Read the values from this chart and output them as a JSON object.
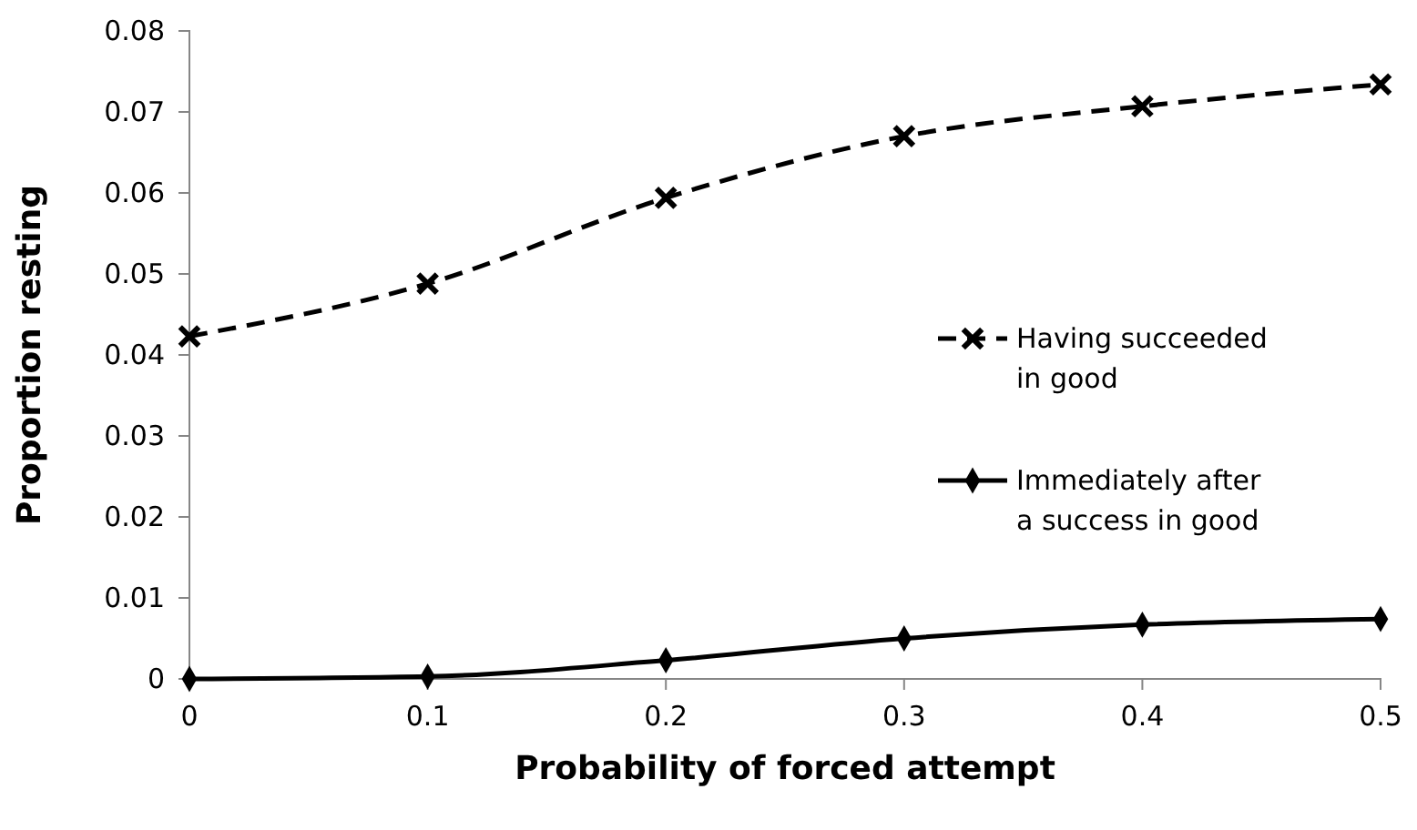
{
  "chart_data": {
    "type": "line",
    "xlabel": "Probability of forced attempt",
    "ylabel": "Proportion resting",
    "x": [
      0,
      0.1,
      0.2,
      0.3,
      0.4,
      0.5
    ],
    "series": [
      {
        "name": "Having succeeded in good",
        "color": "#000000",
        "values": [
          0.0423,
          0.0488,
          0.0594,
          0.067,
          0.0707,
          0.0734
        ],
        "marker": "cross",
        "line_style": "dashed"
      },
      {
        "name": "Immediately after a success in good",
        "color": "#000000",
        "values": [
          0,
          0.0003,
          0.0023,
          0.005,
          0.0067,
          0.0074
        ],
        "marker": "diamond",
        "line_style": "solid"
      }
    ],
    "xlim": [
      0,
      0.5
    ],
    "xticks": [
      0,
      0.1,
      0.2,
      0.3,
      0.4,
      0.5
    ],
    "ylim": [
      0,
      0.08
    ],
    "yticks": [
      0,
      0.01,
      0.02,
      0.03,
      0.04,
      0.05,
      0.06,
      0.07,
      0.08
    ],
    "grid": false,
    "legend": "right"
  }
}
